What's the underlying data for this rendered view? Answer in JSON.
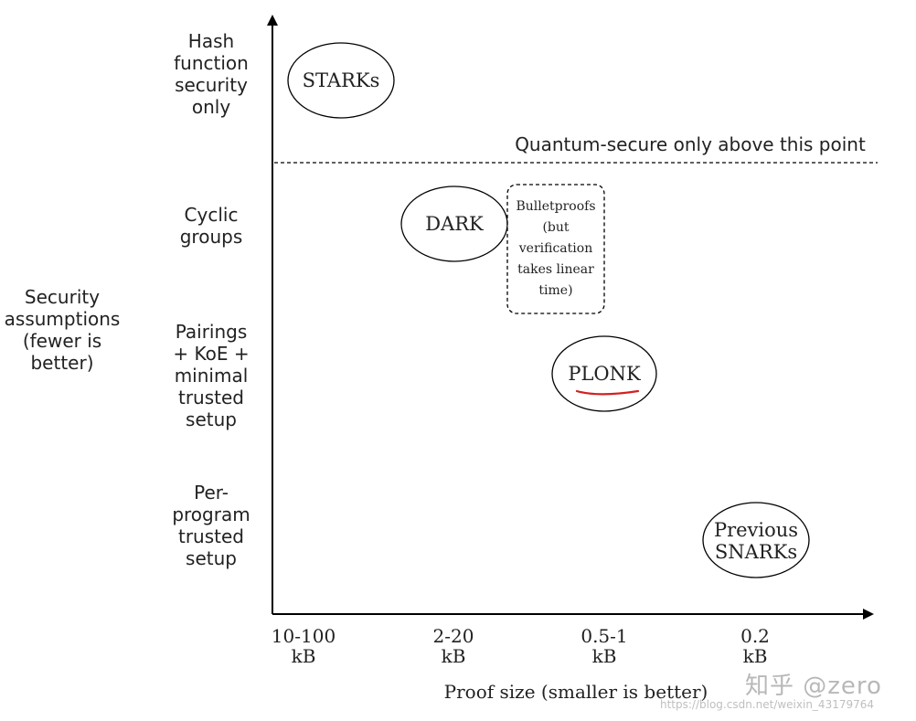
{
  "y_axis": {
    "title": [
      "Security",
      "assumptions",
      "(fewer is",
      "better)"
    ],
    "levels": [
      [
        "Hash",
        "function",
        "security",
        "only"
      ],
      [
        "Cyclic",
        "groups"
      ],
      [
        "Pairings",
        "+ KoE +",
        "minimal",
        "trusted",
        "setup"
      ],
      [
        "Per-",
        "program",
        "trusted",
        "setup"
      ]
    ]
  },
  "x_axis": {
    "title": "Proof size (smaller is better)",
    "ticks": [
      [
        "10-100",
        "kB"
      ],
      [
        "2-20",
        "kB"
      ],
      [
        "0.5-1",
        "kB"
      ],
      [
        "0.2",
        "kB"
      ]
    ]
  },
  "threshold_label": "Quantum-secure only above this point",
  "systems": {
    "starks": "STARKs",
    "dark": "DARK",
    "bulletproofs": [
      "Bulletproofs",
      "(but",
      "verification",
      "takes linear",
      "time)"
    ],
    "plonk": "PLONK",
    "snarks": [
      "Previous",
      "SNARKs"
    ]
  },
  "watermark": {
    "brand": "知乎 @zero",
    "url": "https://blog.csdn.net/weixin_43179764"
  },
  "colors": {
    "underline": "#d42020"
  }
}
